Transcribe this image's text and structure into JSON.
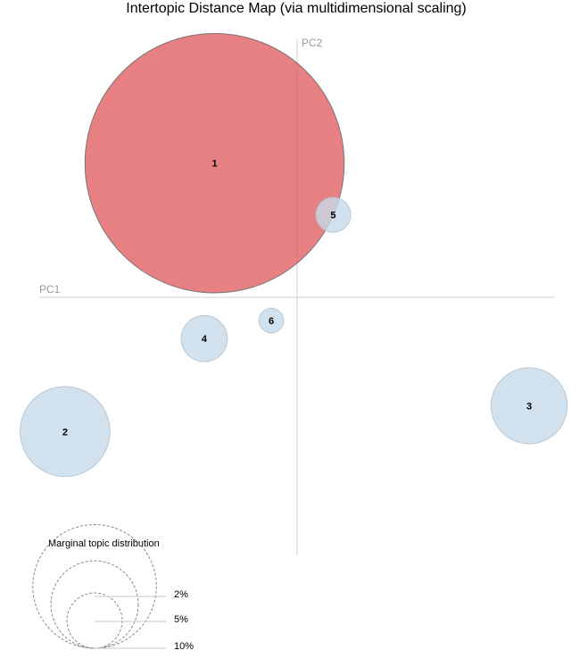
{
  "chart_data": {
    "type": "scatter",
    "title": "Intertopic Distance Map (via multidimensional scaling)",
    "xlabel": "PC1",
    "ylabel": "PC2",
    "xlim": [
      -0.5,
      0.5
    ],
    "ylim": [
      -0.5,
      0.5
    ],
    "topics": [
      {
        "label": "1",
        "x": -0.16,
        "y": 0.26,
        "share_pct": 44.0,
        "selected": true
      },
      {
        "label": "2",
        "x": -0.45,
        "y": -0.26,
        "share_pct": 5.3,
        "selected": false
      },
      {
        "label": "3",
        "x": 0.45,
        "y": -0.21,
        "share_pct": 3.8,
        "selected": false
      },
      {
        "label": "4",
        "x": -0.18,
        "y": -0.08,
        "share_pct": 1.4,
        "selected": false
      },
      {
        "label": "5",
        "x": 0.07,
        "y": 0.16,
        "share_pct": 0.8,
        "selected": false
      },
      {
        "label": "6",
        "x": -0.05,
        "y": -0.045,
        "share_pct": 0.4,
        "selected": false
      }
    ],
    "legend": {
      "title": "Marginal topic distribution",
      "items": [
        {
          "label": "2%",
          "share_pct": 2
        },
        {
          "label": "5%",
          "share_pct": 5
        },
        {
          "label": "10%",
          "share_pct": 10
        }
      ]
    },
    "colors": {
      "default_fill": "#c6dbea",
      "selected_fill": "#de4f52",
      "circle_stroke": "#6e6e6e",
      "axis": "#d2d2d2",
      "legend_stroke": "#8a8a8a"
    }
  }
}
